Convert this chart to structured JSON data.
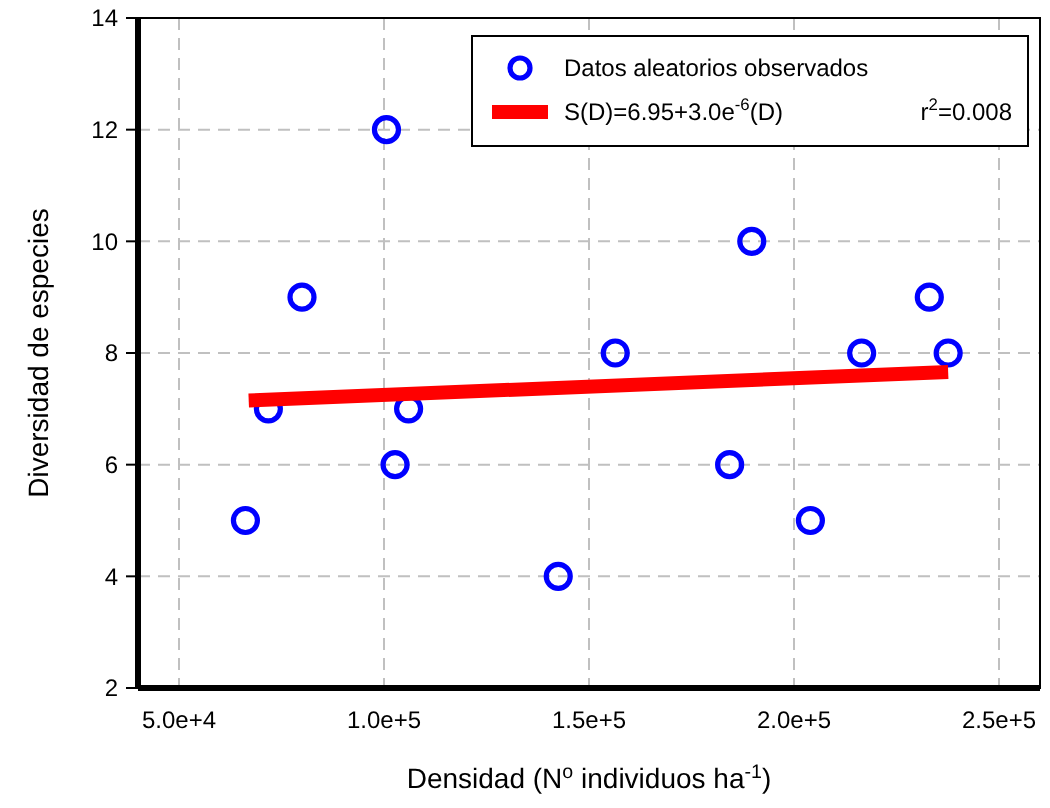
{
  "chart_data": {
    "type": "scatter",
    "xlabel": "Densidad (N$^{o}$ individuos ha$^{-1}$)",
    "ylabel": "Diversidad de especies",
    "xlim": [
      40000,
      260000
    ],
    "ylim": [
      2,
      14
    ],
    "xticks": [
      {
        "value": 50000,
        "label": "5.0e+4"
      },
      {
        "value": 100000,
        "label": "1.0e+5"
      },
      {
        "value": 150000,
        "label": "1.5e+5"
      },
      {
        "value": 200000,
        "label": "2.0e+5"
      },
      {
        "value": 250000,
        "label": "2.5e+5"
      }
    ],
    "yticks": [
      2,
      4,
      6,
      8,
      10,
      12,
      14
    ],
    "grid": true,
    "legend": "top right",
    "annotations": [
      "r$^{2}$=0.008"
    ],
    "series": [
      {
        "name": "Datos aleatorios observados",
        "marker": "circle",
        "color": "#0000ff",
        "x": [
          66200,
          71800,
          80000,
          100600,
          102700,
          106000,
          142500,
          156400,
          184300,
          189700,
          204000,
          216500,
          233000,
          237600
        ],
        "values": [
          5,
          7,
          9,
          12,
          6,
          7,
          4,
          8,
          6,
          10,
          5,
          8,
          9,
          8
        ]
      },
      {
        "name": "S(D)=6.95+3.0e$^{-6}$(D)",
        "type": "line",
        "color": "#ff0000",
        "line_style": "solid",
        "marker": "none",
        "x": [
          67000,
          237600
        ],
        "values": [
          7.15,
          7.66
        ]
      }
    ]
  }
}
